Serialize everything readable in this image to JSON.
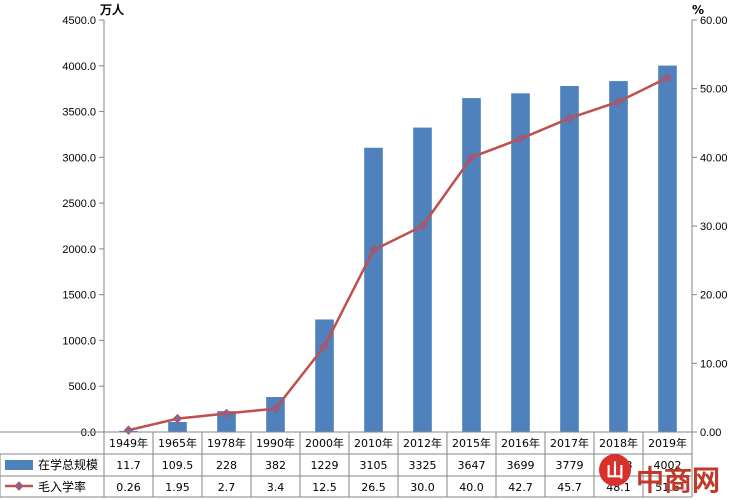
{
  "chart_data": {
    "type": "bar",
    "categories": [
      "1949年",
      "1965年",
      "1978年",
      "1990年",
      "2000年",
      "2010年",
      "2012年",
      "2015年",
      "2016年",
      "2017年",
      "2018年",
      "2019年"
    ],
    "series": [
      {
        "name": "在学总规模",
        "type": "bar",
        "axis": "left",
        "color": "#4f81bd",
        "values": [
          11.7,
          109.5,
          228,
          382,
          1229,
          3105,
          3325,
          3647,
          3699,
          3779,
          3833,
          4002
        ],
        "labels": [
          "11.7",
          "109.5",
          "228",
          "382",
          "1229",
          "3105",
          "3325",
          "3647",
          "3699",
          "3779",
          "3833",
          "4002"
        ]
      },
      {
        "name": "毛入学率",
        "type": "line",
        "axis": "right",
        "color": "#c0504d",
        "values": [
          0.26,
          1.95,
          2.7,
          3.4,
          12.5,
          26.5,
          30.0,
          40.0,
          42.7,
          45.7,
          48.1,
          51.6
        ],
        "labels": [
          "0.26",
          "1.95",
          "2.7",
          "3.4",
          "12.5",
          "26.5",
          "30.0",
          "40.0",
          "42.7",
          "45.7",
          "48.1",
          "51.6"
        ]
      }
    ],
    "y_left": {
      "label": "万人",
      "min": 0,
      "max": 4500,
      "step": 500,
      "ticks": [
        "0.0",
        "500.0",
        "1000.0",
        "1500.0",
        "2000.0",
        "2500.0",
        "3000.0",
        "3500.0",
        "4000.0",
        "4500.0"
      ]
    },
    "y_right": {
      "label": "%",
      "min": 0,
      "max": 60,
      "step": 10,
      "ticks": [
        "0.00",
        "10.00",
        "20.00",
        "30.00",
        "40.00",
        "50.00",
        "60.00"
      ]
    },
    "legend": "bottom-table",
    "grid": false
  },
  "watermark": {
    "text": "中商网",
    "color": "#c0392b"
  }
}
